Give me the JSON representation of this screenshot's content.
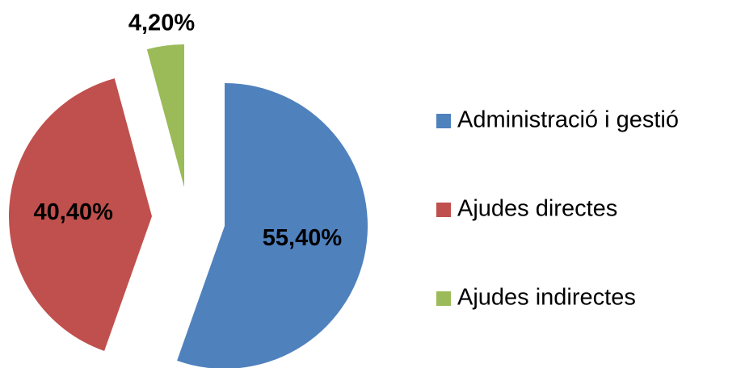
{
  "chart_data": {
    "type": "pie",
    "categories": [
      "Administració i gestió",
      "Ajudes directes",
      "Ajudes indirectes"
    ],
    "values": [
      55.4,
      40.4,
      4.2
    ],
    "value_labels": [
      "55,40%",
      "40,40%",
      "4,20%"
    ],
    "colors": [
      "#4f81bd",
      "#c0504d",
      "#9bbb59"
    ],
    "legend": "right"
  }
}
